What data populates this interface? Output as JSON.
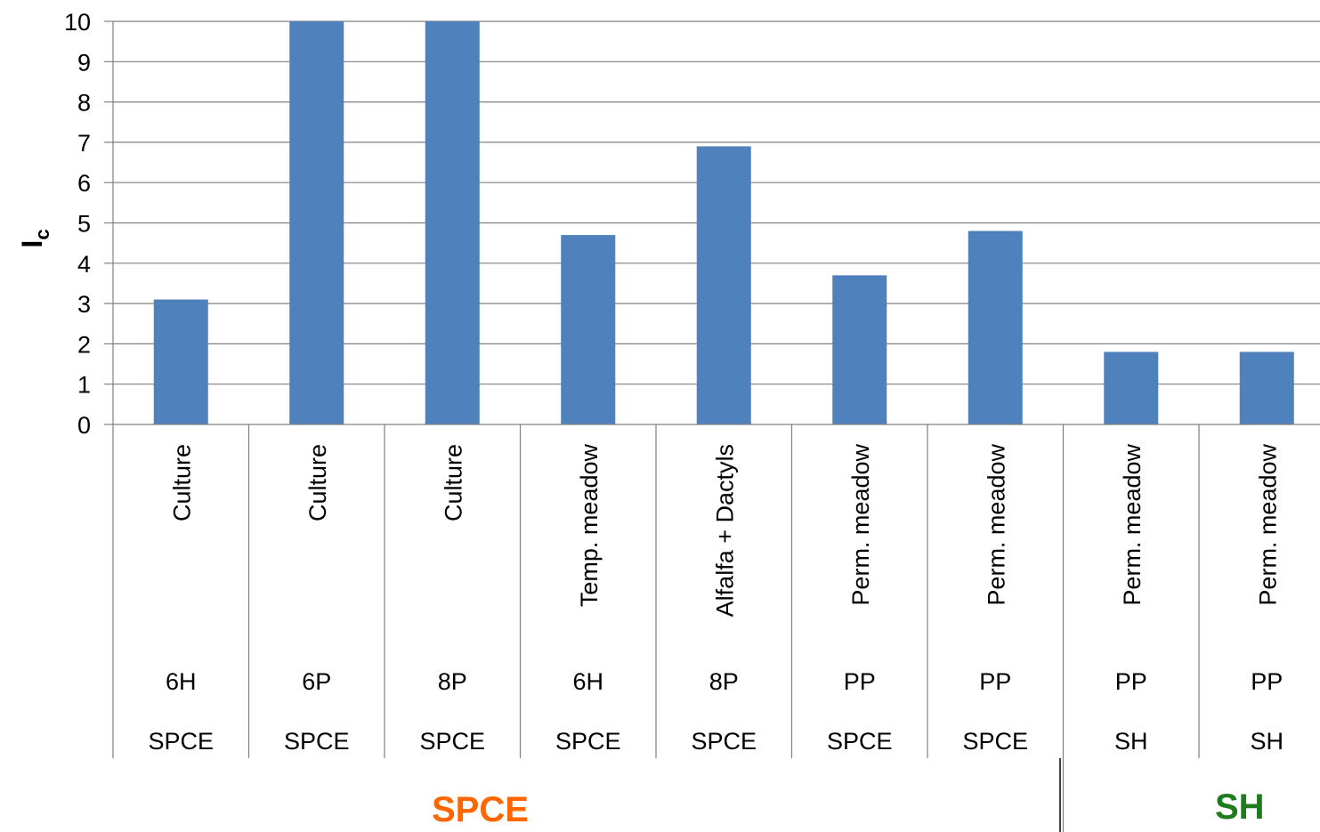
{
  "chart_data": {
    "type": "bar",
    "ylabel": "I",
    "ylabel_subscript": "c",
    "ylim": [
      0,
      10
    ],
    "yticks": [
      "0",
      "1",
      "2",
      "3",
      "4",
      "5",
      "6",
      "7",
      "8",
      "9",
      "10"
    ],
    "grid": true,
    "bar_color": "#4F81BD",
    "categories": [
      {
        "land_use": "Culture",
        "code": "6H",
        "site": "SPCE"
      },
      {
        "land_use": "Culture",
        "code": "6P",
        "site": "SPCE"
      },
      {
        "land_use": "Culture",
        "code": "8P",
        "site": "SPCE"
      },
      {
        "land_use": "Temp.  meadow",
        "code": "6H",
        "site": "SPCE"
      },
      {
        "land_use": "Alfalfa + Dactyls",
        "code": "8P",
        "site": "SPCE"
      },
      {
        "land_use": "Perm. meadow",
        "code": "PP",
        "site": "SPCE"
      },
      {
        "land_use": "Perm. meadow",
        "code": "PP",
        "site": "SPCE"
      },
      {
        "land_use": "Perm. meadow",
        "code": "PP",
        "site": "SH"
      },
      {
        "land_use": "Perm. meadow",
        "code": "PP",
        "site": "SH"
      }
    ],
    "values": [
      3.1,
      10,
      10,
      4.7,
      6.9,
      3.7,
      4.8,
      1.8,
      1.8
    ],
    "groups": [
      {
        "label": "SPCE",
        "color": "#FF6600"
      },
      {
        "label": "SH",
        "color": "#1E7B1E"
      }
    ]
  }
}
